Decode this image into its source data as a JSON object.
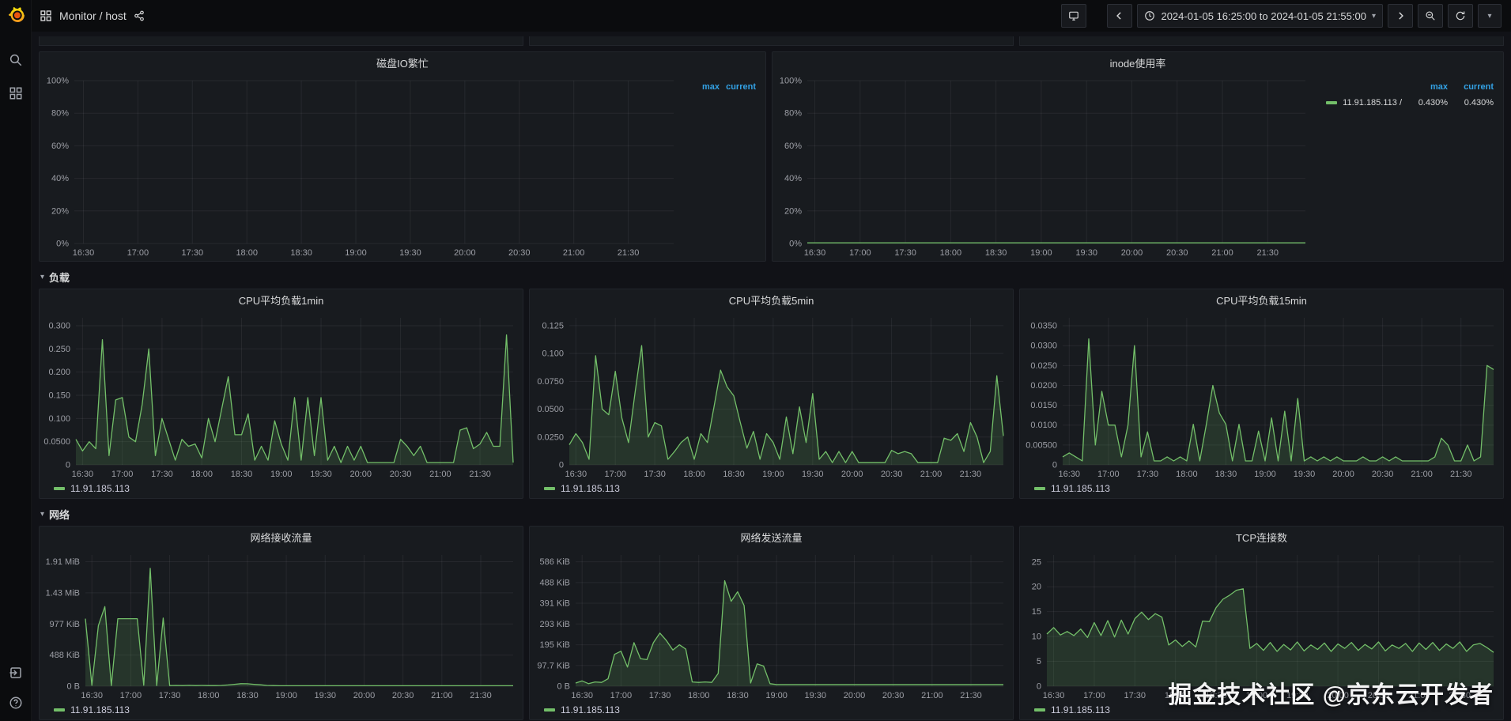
{
  "topbar": {
    "breadcrumb": "Monitor / host",
    "time_range": "2024-01-05 16:25:00 to 2024-01-05 21:55:00"
  },
  "sections": {
    "load": "负载",
    "network": "网络"
  },
  "watermark": "掘金技术社区 @京东云开发者",
  "colors": {
    "series_green": "#73bf69",
    "series_fill": "rgba(115,191,105,0.16)",
    "legend_header_blue": "#33a2e5",
    "grid": "rgba(204,204,220,0.08)",
    "tick_text": "#9d9fa6"
  },
  "icons": [
    "grafana-logo",
    "apps-icon",
    "share-icon",
    "search-icon",
    "dashboards-icon",
    "sign-in-icon",
    "help-icon",
    "kiosk-tv-icon",
    "clock-icon",
    "chevron-left-icon",
    "chevron-right-icon",
    "zoom-out-icon",
    "refresh-icon",
    "chevron-down-icon"
  ],
  "chart_data": [
    {
      "id": "disk_io",
      "type": "line",
      "title": "磁盘IO繁忙",
      "ylim": [
        0,
        100
      ],
      "ylabelw": 40,
      "yticks": [
        {
          "label": "0%",
          "v": 0
        },
        {
          "label": "20%",
          "v": 20
        },
        {
          "label": "40%",
          "v": 40
        },
        {
          "label": "60%",
          "v": 60
        },
        {
          "label": "80%",
          "v": 80
        },
        {
          "label": "100%",
          "v": 100
        }
      ],
      "xticks": [
        "16:30",
        "17:00",
        "17:30",
        "18:00",
        "18:30",
        "19:00",
        "19:30",
        "20:00",
        "20:30",
        "21:00",
        "21:30"
      ],
      "legend_headers": [
        "max",
        "current"
      ],
      "legend_rows": [],
      "series": []
    },
    {
      "id": "inode",
      "type": "line",
      "title": "inode使用率",
      "ylim": [
        0,
        100
      ],
      "ylabelw": 40,
      "yticks": [
        {
          "label": "0%",
          "v": 0
        },
        {
          "label": "20%",
          "v": 20
        },
        {
          "label": "40%",
          "v": 40
        },
        {
          "label": "60%",
          "v": 60
        },
        {
          "label": "80%",
          "v": 80
        },
        {
          "label": "100%",
          "v": 100
        }
      ],
      "xticks": [
        "16:30",
        "17:00",
        "17:30",
        "18:00",
        "18:30",
        "19:00",
        "19:30",
        "20:00",
        "20:30",
        "21:00",
        "21:30"
      ],
      "legend_headers": [
        "max",
        "current"
      ],
      "legend_rows": [
        {
          "name": "11.91.185.113 /",
          "values": [
            "0.430%",
            "0.430%"
          ]
        }
      ],
      "series": [
        {
          "name": "11.91.185.113 /",
          "values": [
            0.43,
            0.43
          ]
        }
      ]
    },
    {
      "id": "cpu1",
      "type": "line",
      "title": "CPU平均负载1min",
      "ylim": [
        0,
        0.317
      ],
      "ylabelw": 42,
      "yticks": [
        {
          "label": "0",
          "v": 0
        },
        {
          "label": "0.0500",
          "v": 0.05
        },
        {
          "label": "0.100",
          "v": 0.1
        },
        {
          "label": "0.150",
          "v": 0.15
        },
        {
          "label": "0.200",
          "v": 0.2
        },
        {
          "label": "0.250",
          "v": 0.25
        },
        {
          "label": "0.300",
          "v": 0.3
        }
      ],
      "xticks": [
        "16:30",
        "17:00",
        "17:30",
        "18:00",
        "18:30",
        "19:00",
        "19:30",
        "20:00",
        "20:30",
        "21:00",
        "21:30"
      ],
      "series": [
        {
          "name": "11.91.185.113",
          "values": [
            0.055,
            0.03,
            0.05,
            0.035,
            0.27,
            0.02,
            0.14,
            0.145,
            0.06,
            0.05,
            0.13,
            0.25,
            0.02,
            0.1,
            0.055,
            0.01,
            0.055,
            0.04,
            0.045,
            0.015,
            0.1,
            0.05,
            0.12,
            0.19,
            0.065,
            0.065,
            0.11,
            0.01,
            0.04,
            0.01,
            0.095,
            0.045,
            0.01,
            0.145,
            0.01,
            0.145,
            0.02,
            0.145,
            0.01,
            0.04,
            0.005,
            0.04,
            0.01,
            0.04,
            0.005,
            0.005,
            0.005,
            0.005,
            0.005,
            0.055,
            0.04,
            0.02,
            0.04,
            0.005,
            0.005,
            0.005,
            0.005,
            0.005,
            0.075,
            0.08,
            0.035,
            0.045,
            0.07,
            0.04,
            0.04,
            0.28,
            0.005
          ]
        }
      ]
    },
    {
      "id": "cpu5",
      "type": "line",
      "title": "CPU平均负载5min",
      "ylim": [
        0,
        0.132
      ],
      "ylabelw": 46,
      "yticks": [
        {
          "label": "0",
          "v": 0
        },
        {
          "label": "0.0250",
          "v": 0.025
        },
        {
          "label": "0.0500",
          "v": 0.05
        },
        {
          "label": "0.0750",
          "v": 0.075
        },
        {
          "label": "0.100",
          "v": 0.1
        },
        {
          "label": "0.125",
          "v": 0.125
        }
      ],
      "xticks": [
        "16:30",
        "17:00",
        "17:30",
        "18:00",
        "18:30",
        "19:00",
        "19:30",
        "20:00",
        "20:30",
        "21:00",
        "21:30"
      ],
      "series": [
        {
          "name": "11.91.185.113",
          "values": [
            0.018,
            0.028,
            0.02,
            0.005,
            0.098,
            0.05,
            0.045,
            0.084,
            0.042,
            0.02,
            0.065,
            0.107,
            0.025,
            0.038,
            0.035,
            0.005,
            0.012,
            0.02,
            0.025,
            0.005,
            0.028,
            0.02,
            0.052,
            0.085,
            0.07,
            0.062,
            0.038,
            0.015,
            0.03,
            0.005,
            0.028,
            0.02,
            0.005,
            0.043,
            0.01,
            0.052,
            0.02,
            0.064,
            0.005,
            0.012,
            0.002,
            0.012,
            0.002,
            0.012,
            0.002,
            0.002,
            0.002,
            0.002,
            0.002,
            0.013,
            0.01,
            0.012,
            0.01,
            0.002,
            0.002,
            0.002,
            0.002,
            0.024,
            0.022,
            0.028,
            0.012,
            0.038,
            0.025,
            0.002,
            0.012,
            0.08,
            0.026
          ]
        }
      ]
    },
    {
      "id": "cpu15",
      "type": "line",
      "title": "CPU平均负载15min",
      "ylim": [
        0,
        0.037
      ],
      "ylabelw": 50,
      "yticks": [
        {
          "label": "0",
          "v": 0
        },
        {
          "label": "0.00500",
          "v": 0.005
        },
        {
          "label": "0.0100",
          "v": 0.01
        },
        {
          "label": "0.0150",
          "v": 0.015
        },
        {
          "label": "0.0200",
          "v": 0.02
        },
        {
          "label": "0.0250",
          "v": 0.025
        },
        {
          "label": "0.0300",
          "v": 0.03
        },
        {
          "label": "0.0350",
          "v": 0.035
        }
      ],
      "xticks": [
        "16:30",
        "17:00",
        "17:30",
        "18:00",
        "18:30",
        "19:00",
        "19:30",
        "20:00",
        "20:30",
        "21:00",
        "21:30"
      ],
      "series": [
        {
          "name": "11.91.185.113",
          "values": [
            0.002,
            0.003,
            0.002,
            0.001,
            0.0317,
            0.005,
            0.0185,
            0.01,
            0.01,
            0.002,
            0.01,
            0.03,
            0.002,
            0.0083,
            0.001,
            0.001,
            0.002,
            0.001,
            0.002,
            0.001,
            0.0102,
            0.001,
            0.0102,
            0.02,
            0.013,
            0.0102,
            0.001,
            0.0102,
            0.001,
            0.001,
            0.0085,
            0.001,
            0.0118,
            0.001,
            0.0135,
            0.001,
            0.0167,
            0.001,
            0.002,
            0.001,
            0.002,
            0.001,
            0.002,
            0.001,
            0.001,
            0.001,
            0.002,
            0.001,
            0.001,
            0.002,
            0.001,
            0.002,
            0.001,
            0.001,
            0.001,
            0.001,
            0.001,
            0.002,
            0.0067,
            0.005,
            0.001,
            0.001,
            0.005,
            0.001,
            0.002,
            0.025,
            0.024
          ]
        }
      ]
    },
    {
      "id": "netrx",
      "type": "line",
      "title": "网络接收流量",
      "ylim": [
        0,
        2060
      ],
      "ylabelw": 54,
      "yticks": [
        {
          "label": "0 B",
          "v": 0
        },
        {
          "label": "488 KiB",
          "v": 488
        },
        {
          "label": "977 KiB",
          "v": 977
        },
        {
          "label": "1.43 MiB",
          "v": 1466
        },
        {
          "label": "1.91 MiB",
          "v": 1955
        }
      ],
      "xticks": [
        "16:30",
        "17:00",
        "17:30",
        "18:00",
        "18:30",
        "19:00",
        "19:30",
        "20:00",
        "20:30",
        "21:00",
        "21:30"
      ],
      "series": [
        {
          "name": "11.91.185.113",
          "values": [
            1060,
            15,
            950,
            1250,
            10,
            1060,
            1060,
            1060,
            1060,
            15,
            1850,
            10,
            1070,
            10,
            12,
            10,
            14,
            10,
            12,
            10,
            10,
            12,
            20,
            30,
            40,
            38,
            30,
            22,
            12,
            10,
            8,
            8,
            8,
            8,
            8,
            8,
            8,
            8,
            8,
            8,
            8,
            8,
            8,
            8,
            8,
            8,
            8,
            8,
            8,
            8,
            8,
            8,
            8,
            8,
            8,
            8,
            8,
            8,
            8,
            8,
            8,
            8,
            8,
            8,
            8,
            8,
            8
          ]
        }
      ]
    },
    {
      "id": "nettx",
      "type": "line",
      "title": "网络发送流量",
      "ylim": [
        0,
        618
      ],
      "ylabelw": 54,
      "yticks": [
        {
          "label": "0 B",
          "v": 0
        },
        {
          "label": "97.7 KiB",
          "v": 97.7
        },
        {
          "label": "195 KiB",
          "v": 195
        },
        {
          "label": "293 KiB",
          "v": 293
        },
        {
          "label": "391 KiB",
          "v": 391
        },
        {
          "label": "488 KiB",
          "v": 488
        },
        {
          "label": "586 KiB",
          "v": 586
        }
      ],
      "xticks": [
        "16:30",
        "17:00",
        "17:30",
        "18:00",
        "18:30",
        "19:00",
        "19:30",
        "20:00",
        "20:30",
        "21:00",
        "21:30"
      ],
      "series": [
        {
          "name": "11.91.185.113",
          "values": [
            15,
            25,
            12,
            20,
            18,
            35,
            150,
            165,
            90,
            205,
            130,
            125,
            205,
            250,
            215,
            170,
            195,
            175,
            20,
            18,
            20,
            18,
            60,
            497,
            400,
            445,
            380,
            15,
            105,
            95,
            12,
            8,
            8,
            8,
            8,
            8,
            8,
            8,
            8,
            8,
            8,
            8,
            8,
            8,
            8,
            8,
            8,
            8,
            8,
            8,
            8,
            8,
            8,
            8,
            8,
            8,
            8,
            8,
            8,
            8,
            8,
            8,
            8,
            8,
            8,
            8,
            8
          ]
        }
      ]
    },
    {
      "id": "tcp",
      "type": "line",
      "title": "TCP连接数",
      "ylim": [
        0,
        26.4
      ],
      "ylabelw": 30,
      "yticks": [
        {
          "label": "0",
          "v": 0
        },
        {
          "label": "5",
          "v": 5
        },
        {
          "label": "10",
          "v": 10
        },
        {
          "label": "15",
          "v": 15
        },
        {
          "label": "20",
          "v": 20
        },
        {
          "label": "25",
          "v": 25
        }
      ],
      "xticks": [
        "16:30",
        "17:00",
        "17:30",
        "18:00",
        "18:30",
        "19:00",
        "19:30",
        "20:00",
        "20:30",
        "21:00",
        "21:30"
      ],
      "series": [
        {
          "name": "11.91.185.113",
          "values": [
            10.5,
            11.8,
            10.3,
            11.0,
            10.2,
            11.5,
            9.8,
            12.8,
            10.2,
            13.2,
            9.9,
            13.3,
            10.5,
            13.6,
            14.9,
            13.4,
            14.6,
            13.9,
            8.3,
            9.3,
            8.0,
            9.1,
            7.9,
            13.1,
            13.0,
            15.8,
            17.5,
            18.3,
            19.3,
            19.6,
            7.6,
            8.6,
            7.2,
            8.8,
            7.0,
            8.4,
            7.3,
            8.9,
            7.1,
            8.3,
            7.4,
            8.7,
            7.0,
            8.5,
            7.6,
            8.8,
            7.2,
            8.4,
            7.5,
            8.9,
            7.1,
            8.3,
            7.6,
            8.6,
            7.0,
            8.7,
            7.4,
            8.8,
            7.2,
            8.5,
            7.6,
            8.9,
            7.0,
            8.3,
            8.6,
            7.8,
            6.8
          ]
        }
      ]
    }
  ]
}
